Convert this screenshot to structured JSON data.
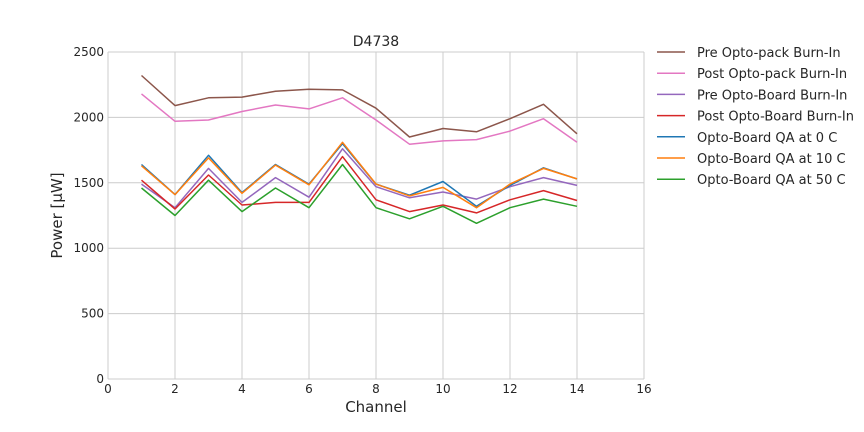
{
  "chart_data": {
    "type": "line",
    "title": "D4738",
    "xlabel": "Channel",
    "ylabel": "Power [μW]",
    "xlim": [
      0,
      16
    ],
    "ylim": [
      0,
      2500
    ],
    "xticks": [
      0,
      2,
      4,
      6,
      8,
      10,
      12,
      14,
      16
    ],
    "yticks": [
      0,
      500,
      1000,
      1500,
      2000,
      2500
    ],
    "grid": true,
    "legend_position": "outside-right",
    "x": [
      1,
      2,
      3,
      4,
      5,
      6,
      7,
      8,
      9,
      10,
      11,
      12,
      13,
      14
    ],
    "series": [
      {
        "name": "Pre Opto-pack Burn-In",
        "color": "#8c564b",
        "values": [
          2320,
          2090,
          2150,
          2155,
          2200,
          2215,
          2210,
          2070,
          1850,
          1915,
          1890,
          1990,
          2100,
          1875
        ]
      },
      {
        "name": "Post Opto-pack Burn-In",
        "color": "#e377c2",
        "values": [
          2180,
          1970,
          1980,
          2045,
          2095,
          2065,
          2150,
          1980,
          1795,
          1820,
          1830,
          1895,
          1990,
          1810
        ]
      },
      {
        "name": "Pre Opto-Board Burn-In",
        "color": "#9467bd",
        "values": [
          1490,
          1310,
          1610,
          1350,
          1540,
          1390,
          1760,
          1470,
          1385,
          1430,
          1375,
          1470,
          1540,
          1480
        ]
      },
      {
        "name": "Post Opto-Board Burn-In",
        "color": "#d62728",
        "values": [
          1520,
          1300,
          1560,
          1330,
          1350,
          1350,
          1700,
          1370,
          1280,
          1330,
          1270,
          1370,
          1440,
          1365
        ]
      },
      {
        "name": "Opto-Board QA at 0 C",
        "color": "#1f77b4",
        "values": [
          1640,
          1410,
          1710,
          1425,
          1640,
          1490,
          1800,
          1490,
          1405,
          1510,
          1320,
          1480,
          1615,
          1530
        ]
      },
      {
        "name": "Opto-Board QA at 10 C",
        "color": "#ff7f0e",
        "values": [
          1630,
          1410,
          1690,
          1420,
          1635,
          1485,
          1810,
          1490,
          1400,
          1465,
          1310,
          1490,
          1610,
          1530
        ]
      },
      {
        "name": "Opto-Board QA at 50 C",
        "color": "#2ca02c",
        "values": [
          1460,
          1250,
          1520,
          1280,
          1460,
          1310,
          1640,
          1310,
          1225,
          1320,
          1190,
          1310,
          1375,
          1320
        ]
      }
    ]
  }
}
